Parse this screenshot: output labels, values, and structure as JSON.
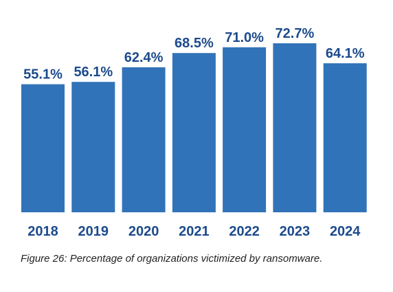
{
  "chart_data": {
    "type": "bar",
    "categories": [
      "2018",
      "2019",
      "2020",
      "2021",
      "2022",
      "2023",
      "2024"
    ],
    "values": [
      55.1,
      56.1,
      62.4,
      68.5,
      71.0,
      72.7,
      64.1
    ],
    "value_labels": [
      "55.1%",
      "56.1%",
      "62.4%",
      "68.5%",
      "71.0%",
      "72.7%",
      "64.1%"
    ],
    "ylim": [
      0,
      72.7
    ],
    "grid": false,
    "bar_color": "#3173b8",
    "label_color": "#1c4a8c"
  },
  "caption": "Figure 26: Percentage of organizations victimized by ransomware."
}
